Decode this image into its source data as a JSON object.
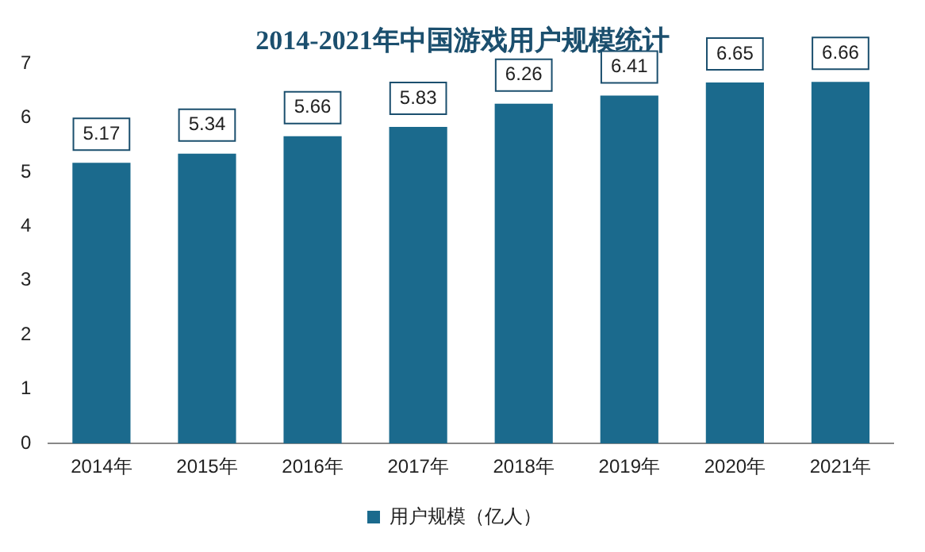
{
  "chart_data": {
    "type": "bar",
    "title": "2014-2021年中国游戏用户规模统计",
    "categories": [
      "2014年",
      "2015年",
      "2016年",
      "2017年",
      "2018年",
      "2019年",
      "2020年",
      "2021年"
    ],
    "series": [
      {
        "name": "用户规模（亿人）",
        "color": "#1b6a8d",
        "values": [
          5.17,
          5.34,
          5.66,
          5.83,
          6.26,
          6.41,
          6.65,
          6.66
        ]
      }
    ],
    "ylim": [
      0,
      7
    ],
    "yticks": [
      0,
      1,
      2,
      3,
      4,
      5,
      6,
      7
    ],
    "grid": false,
    "legend": "bottom",
    "data_labels": true
  }
}
